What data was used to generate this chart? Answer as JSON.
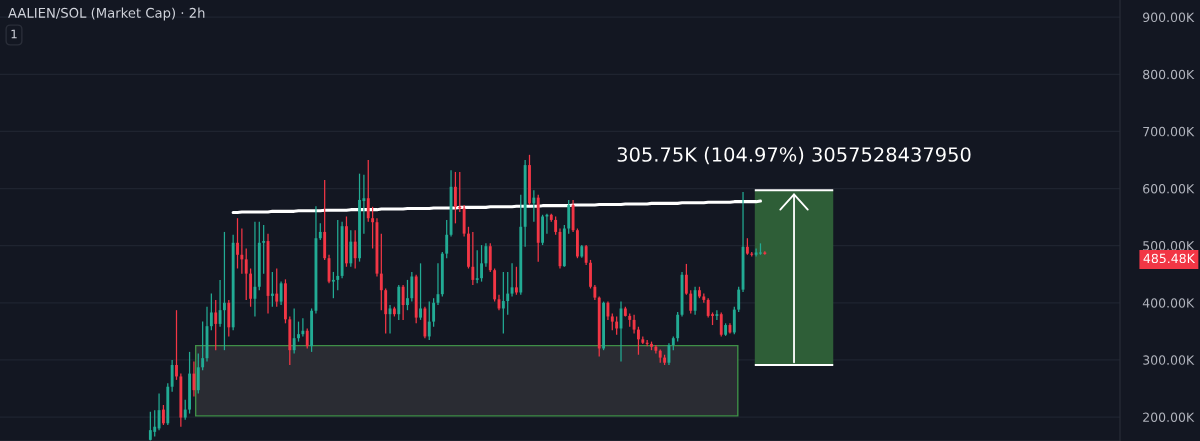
{
  "chart_data": {
    "type": "candlestick",
    "title": "AALIEN/SOL (Market Cap) · 2h",
    "categories": [
      null,
      null,
      null,
      null,
      null,
      null,
      null,
      null,
      null,
      null,
      null,
      null,
      null,
      null,
      null,
      null,
      null,
      null,
      null,
      null,
      null,
      null,
      null,
      null,
      null,
      null,
      null,
      null,
      null,
      null,
      null,
      null,
      null,
      null,
      null,
      null,
      null,
      null,
      null,
      null,
      null,
      null,
      null,
      null,
      null,
      null,
      null,
      null,
      null,
      null,
      null,
      null,
      null,
      null,
      null,
      null,
      null,
      null,
      null,
      null,
      null,
      null,
      null,
      null,
      null,
      null,
      null,
      null,
      null,
      null,
      null,
      null,
      null,
      null,
      null,
      null,
      null,
      null,
      null,
      null,
      null,
      null,
      null,
      null,
      null,
      null,
      null,
      null,
      null,
      null,
      null,
      null,
      null,
      null,
      null,
      null,
      null,
      null,
      null,
      null,
      null,
      null,
      null,
      null,
      null,
      null,
      null,
      null,
      null,
      null,
      null,
      null,
      null,
      null,
      null,
      null,
      null,
      null,
      null,
      null,
      null,
      null,
      null,
      null,
      null,
      null,
      null,
      null,
      null,
      null,
      null,
      null,
      null,
      null,
      null,
      null,
      null,
      null,
      null,
      null,
      null,
      null,
      null,
      null,
      null,
      null,
      null,
      null,
      null,
      null,
      null,
      null,
      null,
      null,
      null,
      null,
      null,
      null,
      null,
      null,
      null,
      null,
      null,
      null,
      null,
      null,
      null,
      null,
      null,
      null,
      null,
      null,
      null,
      null,
      null,
      null,
      null,
      null,
      null,
      null,
      null,
      null,
      null,
      null,
      null,
      null,
      null,
      null,
      null,
      null,
      null,
      null,
      null,
      null,
      null,
      null,
      null,
      null,
      null,
      null,
      null,
      null,
      null,
      null,
      null,
      null,
      null,
      null,
      null,
      null,
      null,
      null,
      null,
      null,
      null,
      null,
      null,
      null,
      null,
      null,
      null,
      null,
      null,
      null,
      null,
      null,
      null,
      null,
      null,
      null,
      null,
      null,
      null,
      null,
      null,
      null,
      null,
      null,
      null,
      null,
      null,
      null,
      null,
      null,
      null,
      null,
      null,
      null,
      null,
      null,
      null,
      null,
      null,
      null,
      null,
      null,
      null
    ],
    "ohlc": [
      null,
      null,
      null,
      null,
      null,
      null,
      null,
      null,
      null,
      null,
      null,
      null,
      null,
      null,
      null,
      null,
      null,
      null,
      null,
      null,
      null,
      null,
      null,
      null,
      null,
      null,
      null,
      null,
      null,
      null,
      null,
      null,
      null,
      null,
      [
        160000,
        209000,
        159000,
        177000
      ],
      [
        174000,
        212000,
        166000,
        183000
      ],
      [
        180000,
        241000,
        177000,
        212000
      ],
      [
        213000,
        221000,
        186000,
        189000
      ],
      [
        189000,
        259000,
        186000,
        253000
      ],
      [
        253000,
        300000,
        244000,
        291000
      ],
      [
        291000,
        387000,
        265000,
        271000
      ],
      [
        271000,
        276000,
        183000,
        199000
      ],
      [
        199000,
        230000,
        195000,
        213000
      ],
      [
        213000,
        314000,
        206000,
        276000
      ],
      [
        276000,
        297000,
        236000,
        247000
      ],
      [
        247000,
        311000,
        241000,
        287000
      ],
      [
        287000,
        367000,
        282000,
        303000
      ],
      [
        303000,
        393000,
        297000,
        359000
      ],
      [
        359000,
        416000,
        352000,
        383000
      ],
      [
        383000,
        405000,
        317000,
        363000
      ],
      [
        363000,
        440000,
        358000,
        387000
      ],
      [
        387000,
        524000,
        317000,
        400000
      ],
      [
        400000,
        405000,
        341000,
        357000
      ],
      [
        357000,
        519000,
        352000,
        505000
      ],
      [
        505000,
        548000,
        460000,
        484000
      ],
      [
        484000,
        530000,
        451000,
        476000
      ],
      [
        476000,
        495000,
        405000,
        451000
      ],
      [
        451000,
        460000,
        393000,
        407000
      ],
      [
        407000,
        542000,
        376000,
        428000
      ],
      [
        428000,
        542000,
        422000,
        505000
      ],
      [
        505000,
        536000,
        451000,
        508000
      ],
      [
        508000,
        521000,
        381000,
        412000
      ],
      [
        412000,
        454000,
        393000,
        416000
      ],
      [
        416000,
        460000,
        393000,
        402000
      ],
      [
        402000,
        437000,
        396000,
        434000
      ],
      [
        434000,
        441000,
        364000,
        371000
      ],
      [
        371000,
        376000,
        291000,
        317000
      ],
      [
        317000,
        390000,
        311000,
        338000
      ],
      [
        338000,
        367000,
        332000,
        345000
      ],
      [
        345000,
        373000,
        341000,
        351000
      ],
      [
        351000,
        355000,
        320000,
        324000
      ],
      [
        324000,
        390000,
        314000,
        386000
      ],
      [
        386000,
        569000,
        381000,
        513000
      ],
      [
        513000,
        539000,
        510000,
        524000
      ],
      [
        524000,
        615000,
        475000,
        478000
      ],
      [
        478000,
        484000,
        434000,
        437000
      ],
      [
        437000,
        454000,
        408000,
        440000
      ],
      [
        440000,
        545000,
        422000,
        447000
      ],
      [
        447000,
        542000,
        443000,
        534000
      ],
      [
        534000,
        551000,
        463000,
        469000
      ],
      [
        469000,
        527000,
        463000,
        507000
      ],
      [
        507000,
        527000,
        460000,
        478000
      ],
      [
        478000,
        626000,
        472000,
        580000
      ],
      [
        578000,
        624000,
        521000,
        583000
      ],
      [
        583000,
        650000,
        542000,
        548000
      ],
      [
        548000,
        568000,
        495000,
        541000
      ],
      [
        541000,
        548000,
        446000,
        451000
      ],
      [
        451000,
        521000,
        387000,
        422000
      ],
      [
        422000,
        425000,
        346000,
        380000
      ],
      [
        380000,
        396000,
        346000,
        390000
      ],
      [
        390000,
        393000,
        376000,
        380000
      ],
      [
        380000,
        431000,
        370000,
        428000
      ],
      [
        428000,
        431000,
        370000,
        396000
      ],
      [
        396000,
        440000,
        387000,
        408000
      ],
      [
        408000,
        454000,
        402000,
        446000
      ],
      [
        446000,
        449000,
        364000,
        374000
      ],
      [
        374000,
        469000,
        370000,
        390000
      ],
      [
        390000,
        393000,
        338000,
        341000
      ],
      [
        341000,
        402000,
        335000,
        367000
      ],
      [
        367000,
        408000,
        358000,
        400000
      ],
      [
        400000,
        469000,
        396000,
        415000
      ],
      [
        415000,
        489000,
        411000,
        486000
      ],
      [
        486000,
        545000,
        478000,
        519000
      ],
      [
        519000,
        632000,
        516000,
        603000
      ],
      [
        603000,
        629000,
        539000,
        568000
      ],
      [
        568000,
        629000,
        559000,
        565000
      ],
      [
        565000,
        571000,
        516000,
        521000
      ],
      [
        521000,
        533000,
        460000,
        463000
      ],
      [
        463000,
        524000,
        431000,
        440000
      ],
      [
        440000,
        492000,
        434000,
        443000
      ],
      [
        443000,
        501000,
        437000,
        469000
      ],
      [
        469000,
        504000,
        463000,
        499000
      ],
      [
        499000,
        504000,
        454000,
        457000
      ],
      [
        457000,
        460000,
        402000,
        406000
      ],
      [
        406000,
        414000,
        387000,
        390000
      ],
      [
        390000,
        454000,
        346000,
        403000
      ],
      [
        403000,
        454000,
        379000,
        416000
      ],
      [
        416000,
        469000,
        411000,
        427000
      ],
      [
        427000,
        463000,
        414000,
        418000
      ],
      [
        418000,
        589000,
        414000,
        533000
      ],
      [
        533000,
        650000,
        498000,
        641000
      ],
      [
        641000,
        659000,
        571000,
        574000
      ],
      [
        574000,
        597000,
        542000,
        584000
      ],
      [
        584000,
        589000,
        472000,
        505000
      ],
      [
        505000,
        554000,
        501000,
        551000
      ],
      [
        551000,
        556000,
        521000,
        554000
      ],
      [
        554000,
        556000,
        542000,
        545000
      ],
      [
        545000,
        551000,
        519000,
        524000
      ],
      [
        524000,
        530000,
        460000,
        464000
      ],
      [
        464000,
        536000,
        463000,
        530000
      ],
      [
        530000,
        580000,
        521000,
        571000
      ],
      [
        571000,
        580000,
        524000,
        527000
      ],
      [
        527000,
        530000,
        478000,
        481000
      ],
      [
        481000,
        501000,
        479000,
        499000
      ],
      [
        499000,
        501000,
        466000,
        470000
      ],
      [
        470000,
        475000,
        425000,
        428000
      ],
      [
        428000,
        431000,
        405000,
        409000
      ],
      [
        409000,
        411000,
        306000,
        320000
      ],
      [
        320000,
        402000,
        317000,
        400000
      ],
      [
        400000,
        402000,
        370000,
        376000
      ],
      [
        376000,
        381000,
        352000,
        367000
      ],
      [
        367000,
        376000,
        344000,
        355000
      ],
      [
        355000,
        402000,
        297000,
        390000
      ],
      [
        390000,
        393000,
        376000,
        377000
      ],
      [
        377000,
        381000,
        358000,
        370000
      ],
      [
        370000,
        379000,
        346000,
        353000
      ],
      [
        353000,
        358000,
        309000,
        336000
      ],
      [
        336000,
        341000,
        328000,
        330000
      ],
      [
        330000,
        335000,
        324000,
        328000
      ],
      [
        328000,
        332000,
        317000,
        323000
      ],
      [
        323000,
        326000,
        311000,
        316000
      ],
      [
        316000,
        318000,
        295000,
        304000
      ],
      [
        304000,
        309000,
        291000,
        295000
      ],
      [
        295000,
        329000,
        291000,
        326000
      ],
      [
        326000,
        341000,
        317000,
        338000
      ],
      [
        338000,
        384000,
        332000,
        379000
      ],
      [
        379000,
        454000,
        376000,
        449000
      ],
      [
        449000,
        468000,
        414000,
        416000
      ],
      [
        416000,
        422000,
        381000,
        386000
      ],
      [
        386000,
        428000,
        379000,
        422000
      ],
      [
        422000,
        428000,
        408000,
        411000
      ],
      [
        411000,
        416000,
        400000,
        405000
      ],
      [
        405000,
        408000,
        374000,
        377000
      ],
      [
        380000,
        383000,
        361000,
        377000
      ],
      [
        377000,
        387000,
        370000,
        380000
      ],
      [
        380000,
        383000,
        341000,
        344000
      ],
      [
        344000,
        364000,
        342000,
        361000
      ],
      [
        361000,
        364000,
        346000,
        348000
      ],
      [
        348000,
        393000,
        345000,
        388000
      ],
      [
        388000,
        428000,
        384000,
        423000
      ],
      [
        423000,
        594000,
        419000,
        498000
      ],
      [
        498000,
        513000,
        484000,
        486000
      ],
      [
        486000,
        489000,
        481000,
        484000
      ],
      [
        484000,
        495000,
        481000,
        488000
      ],
      [
        486000,
        504000,
        484000,
        488000
      ],
      [
        488000,
        490000,
        484000,
        485480
      ],
      null,
      null,
      null,
      null,
      null,
      null,
      null,
      null,
      null,
      null,
      null,
      null,
      null,
      null,
      null,
      null,
      null,
      null,
      null,
      null,
      null,
      null,
      null,
      null,
      null,
      null,
      null,
      null,
      null,
      null,
      null,
      null,
      null,
      null,
      null,
      null,
      null,
      null,
      null,
      null,
      null,
      null,
      null,
      null,
      null,
      null,
      null,
      null,
      null,
      null,
      null,
      null,
      null,
      null,
      null,
      null,
      null,
      null,
      null,
      null,
      null,
      null,
      null,
      null,
      null,
      null,
      null,
      null,
      null,
      null,
      null,
      null,
      null,
      null,
      null,
      null,
      null,
      null,
      null,
      null,
      null
    ],
    "colors": [
      null,
      null,
      null,
      null,
      null,
      null,
      null,
      null,
      null,
      null,
      null,
      null,
      null,
      null,
      null,
      null,
      null,
      null,
      null,
      null,
      null,
      null,
      null,
      null,
      null,
      null,
      null,
      null,
      null,
      null,
      null,
      null,
      null,
      null,
      "#22ab94",
      "#22ab94",
      "#22ab94",
      "#f23645",
      "#22ab94",
      "#22ab94",
      "#f23645",
      "#f23645",
      "#22ab94",
      "#22ab94",
      "#f23645",
      "#22ab94",
      "#22ab94",
      "#22ab94",
      "#22ab94",
      "#f23645",
      "#22ab94",
      "#22ab94",
      "#f23645",
      "#22ab94",
      "#f23645",
      "#f23645",
      "#f23645",
      "#f23645",
      "#22ab94",
      "#22ab94",
      "#22ab94",
      "#f23645",
      "#22ab94",
      "#f23645",
      "#22ab94",
      "#f23645",
      "#f23645",
      "#22ab94",
      "#22ab94",
      "#22ab94",
      "#f23645",
      "#22ab94",
      "#22ab94",
      "#22ab94",
      "#f23645",
      "#f23645",
      "#22ab94",
      "#22ab94",
      "#22ab94",
      "#f23645",
      "#22ab94",
      "#f23645",
      "#22ab94",
      "#22ab94",
      "#f23645",
      "#f23645",
      "#f23645",
      "#f23645",
      "#f23645",
      "#22ab94",
      "#f23645",
      "#22ab94",
      "#f23645",
      "#22ab94",
      "#22ab94",
      "#f23645",
      "#22ab94",
      "#f23645",
      "#22ab94",
      "#22ab94",
      "#22ab94",
      "#22ab94",
      "#22ab94",
      "#22ab94",
      "#f23645",
      "#f23645",
      "#f23645",
      "#f23645",
      "#f23645",
      "#22ab94",
      "#22ab94",
      "#22ab94",
      "#f23645",
      "#f23645",
      "#f23645",
      "#22ab94",
      "#22ab94",
      "#22ab94",
      "#f23645",
      "#22ab94",
      "#22ab94",
      "#f23645",
      "#22ab94",
      "#f23645",
      "#22ab94",
      "#22ab94",
      "#f23645",
      "#f23645",
      "#f23645",
      "#22ab94",
      "#22ab94",
      "#f23645",
      "#f23645",
      "#22ab94",
      "#f23645",
      "#f23645",
      "#f23645",
      "#f23645",
      "#22ab94",
      "#f23645",
      "#f23645",
      "#f23645",
      "#22ab94",
      "#f23645",
      "#f23645",
      "#f23645",
      "#f23645",
      "#f23645",
      "#f23645",
      "#f23645",
      "#f23645",
      "#f23645",
      "#f23645",
      "#22ab94",
      "#22ab94",
      "#22ab94",
      "#22ab94",
      "#f23645",
      "#f23645",
      "#22ab94",
      "#f23645",
      "#f23645",
      "#f23645",
      "#f23645",
      "#22ab94",
      "#f23645",
      "#22ab94",
      "#f23645",
      "#22ab94",
      "#22ab94",
      "#22ab94",
      "#f23645",
      "#f23645",
      "#22ab94",
      "#22ab94",
      "#f23645",
      null,
      null,
      null,
      null,
      null,
      null,
      null,
      null,
      null,
      null,
      null,
      null,
      null,
      null,
      null,
      null,
      null,
      null,
      null,
      null,
      null,
      null,
      null,
      null,
      null,
      null,
      null,
      null,
      null,
      null,
      null,
      null,
      null,
      null,
      null,
      null,
      null,
      null,
      null,
      null,
      null,
      null,
      null,
      null,
      null,
      null,
      null,
      null,
      null,
      null,
      null,
      null,
      null,
      null,
      null,
      null,
      null,
      null,
      null,
      null,
      null,
      null,
      null,
      null,
      null,
      null,
      null,
      null,
      null,
      null,
      null,
      null,
      null,
      null,
      null,
      null,
      null,
      null,
      null,
      null,
      null
    ],
    "series": [
      {
        "type": "line",
        "color": "#ffffff",
        "values": [
          null,
          null,
          null,
          null,
          null,
          null,
          null,
          null,
          null,
          null,
          null,
          null,
          null,
          null,
          null,
          null,
          null,
          null,
          null,
          null,
          null,
          null,
          null,
          null,
          null,
          null,
          null,
          null,
          null,
          null,
          null,
          null,
          null,
          null,
          null,
          null,
          null,
          null,
          null,
          null,
          null,
          null,
          null,
          null,
          null,
          null,
          null,
          null,
          null,
          null,
          null,
          null,
          null,
          558000,
          558000,
          559000,
          559000,
          559000,
          559000,
          559000,
          559000,
          559000,
          560000,
          560000,
          560000,
          560000,
          560000,
          560000,
          561000,
          561000,
          561000,
          561000,
          561000,
          561000,
          562000,
          562000,
          562000,
          562000,
          562000,
          562000,
          563000,
          563000,
          563000,
          563000,
          563000,
          563000,
          563000,
          564000,
          564000,
          564000,
          564000,
          564000,
          564000,
          565000,
          565000,
          565000,
          565000,
          565000,
          565000,
          566000,
          566000,
          566000,
          566000,
          566000,
          566000,
          567000,
          567000,
          567000,
          567000,
          567000,
          567000,
          567000,
          568000,
          568000,
          568000,
          568000,
          568000,
          568000,
          569000,
          569000,
          569000,
          569000,
          569000,
          569000,
          570000,
          570000,
          570000,
          570000,
          570000,
          570000,
          570000,
          571000,
          571000,
          571000,
          571000,
          571000,
          571000,
          572000,
          572000,
          572000,
          572000,
          572000,
          572000,
          573000,
          573000,
          573000,
          573000,
          573000,
          573000,
          574000,
          574000,
          574000,
          574000,
          574000,
          574000,
          574000,
          575000,
          575000,
          575000,
          575000,
          575000,
          575000,
          576000,
          576000,
          576000,
          576000,
          576000,
          576000,
          577000,
          577000,
          577000,
          577000,
          577000,
          577000,
          578000,
          null,
          null,
          null,
          null,
          null,
          null,
          null,
          null,
          null,
          null,
          null,
          null,
          null,
          null,
          null,
          null,
          null,
          null,
          null,
          null,
          null,
          null,
          null,
          null,
          null,
          null,
          null,
          null,
          null,
          null,
          null,
          null,
          null,
          null,
          null,
          null,
          null,
          null,
          null,
          null,
          null,
          null,
          null,
          null,
          null,
          null,
          null,
          null,
          null,
          null,
          null,
          null,
          null,
          null,
          null,
          null,
          null,
          null,
          null,
          null,
          null,
          null,
          null,
          null,
          null,
          null,
          null,
          null,
          null,
          null,
          null,
          null,
          null,
          null,
          null,
          null,
          null,
          null,
          null,
          null,
          null,
          null
        ]
      }
    ],
    "bands": [
      {
        "axis": "y",
        "from": 202000,
        "to": 325000,
        "color": "#2a2c33"
      },
      {
        "axis": "y",
        "from": 291000,
        "to": 597000,
        "color": "#2e5e37"
      }
    ],
    "annotations": [
      "1",
      {
        "text": "305.75K (104.97%) 3057528437950",
        "y": 597000
      },
      "485.48K"
    ],
    "ylim": [
      158000,
      930000
    ],
    "yticks": [
      {
        "value": 200000,
        "label": "200.00K"
      },
      {
        "value": 300000,
        "label": "300.00K"
      },
      {
        "value": 400000,
        "label": "400.00K"
      },
      {
        "value": 500000,
        "label": "500.00K"
      },
      {
        "value": 600000,
        "label": "600.00K"
      },
      {
        "value": 700000,
        "label": "700.00K"
      },
      {
        "value": 800000,
        "label": "800.00K"
      },
      {
        "value": 900000,
        "label": "900.00K"
      }
    ],
    "grid": "y",
    "tick_labels": "y"
  }
}
